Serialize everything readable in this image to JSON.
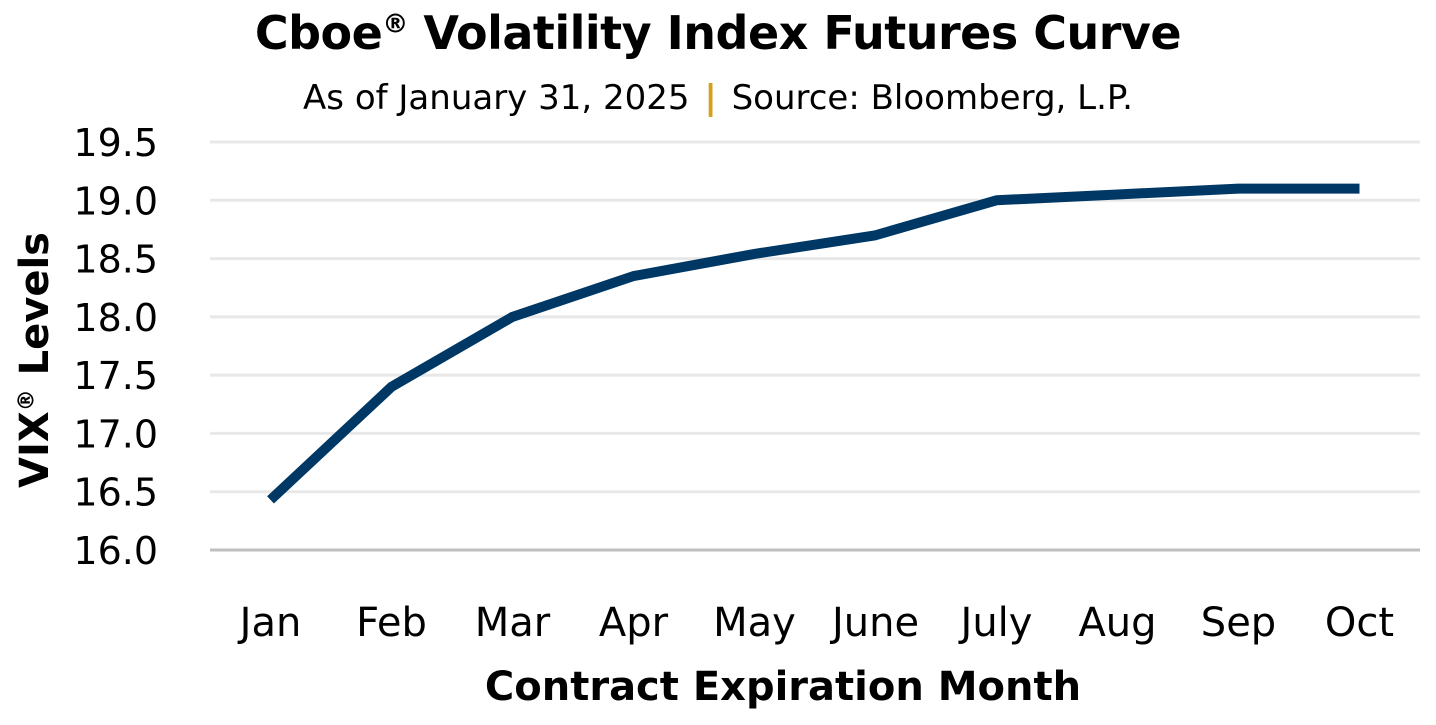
{
  "chart_data": {
    "type": "line",
    "title": "Cboe",
    "title_reg_mark": "®",
    "title_rest": " Volatility Index Futures Curve",
    "subtitle_left": "As of January 31, 2025",
    "subtitle_separator": "|",
    "subtitle_right": "Source: Bloomberg, L.P.",
    "xlabel": "Contract Expiration Month",
    "ylabel_prefix": "VIX",
    "ylabel_reg_mark": "®",
    "ylabel_suffix": " Levels",
    "ylim": [
      16.0,
      19.5
    ],
    "yticks": [
      "16.0",
      "16.5",
      "17.0",
      "17.5",
      "18.0",
      "18.5",
      "19.0",
      "19.5"
    ],
    "grid": true,
    "categories": [
      "Jan",
      "Feb",
      "Mar",
      "Apr",
      "May",
      "June",
      "July",
      "Aug",
      "Sep",
      "Oct"
    ],
    "series": [
      {
        "values": [
          16.43,
          17.4,
          18.0,
          18.35,
          18.54,
          18.7,
          19.0,
          19.05,
          19.1,
          19.1
        ]
      }
    ],
    "colors": {
      "line": "#003865",
      "grid": "#e8e8e8",
      "axis": "#bfbfbf",
      "separator": "#d4a017"
    }
  }
}
